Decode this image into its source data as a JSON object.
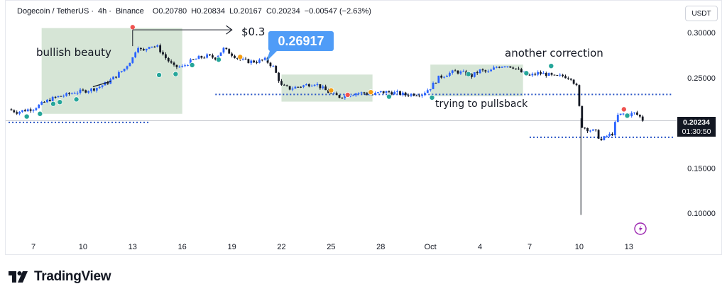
{
  "header": {
    "symbol": "Dogecoin / TetherUS",
    "interval": "4h",
    "exchange": "Binance",
    "open": "O0.20780",
    "high": "H0.20834",
    "low": "L0.20167",
    "close": "C0.20234",
    "change": "−0.00547 (−2.63%)"
  },
  "currency": "USDT",
  "last_price": "0.20234",
  "countdown": "01:30:50",
  "brand": "TradingView",
  "annotations": {
    "bullish": "bullish beauty",
    "target": "$0.3",
    "callout": "0.26917",
    "correction": "another correction",
    "pullback": "trying to pullsback"
  },
  "colors": {
    "up": "#2962ff",
    "down": "#131722",
    "zone": "#cfe0cf",
    "level": "#2a56c6",
    "callout": "#4f9cf7",
    "marker_green": "#26a69a",
    "marker_red": "#ef5350",
    "marker_orange": "#f39c12",
    "price_label_bg": "#131722"
  },
  "chart_data": {
    "type": "candlestick",
    "title": "",
    "ylim": [
      0.09,
      0.318
    ],
    "y_ticks": [
      0.1,
      0.15,
      0.2,
      0.25,
      0.3
    ],
    "y_tick_labels": [
      "0.10000",
      "0.15000",
      "0.20000",
      "0.25000",
      "0.30000"
    ],
    "x_ticks": [
      "7",
      "10",
      "13",
      "16",
      "19",
      "22",
      "25",
      "28",
      "Oct",
      "4",
      "7",
      "10",
      "13"
    ],
    "x_tick_days": [
      0,
      3,
      6,
      9,
      12,
      15,
      18,
      21,
      24,
      27,
      30,
      33,
      36
    ],
    "close_path": [
      [
        -1.5,
        0.215
      ],
      [
        -1.0,
        0.212
      ],
      [
        -0.5,
        0.214
      ],
      [
        0,
        0.216
      ],
      [
        0.5,
        0.221
      ],
      [
        1.0,
        0.226
      ],
      [
        1.5,
        0.229
      ],
      [
        2.0,
        0.231
      ],
      [
        2.5,
        0.234
      ],
      [
        3.0,
        0.235
      ],
      [
        3.5,
        0.237
      ],
      [
        4.0,
        0.24
      ],
      [
        4.5,
        0.245
      ],
      [
        5.0,
        0.252
      ],
      [
        5.5,
        0.26
      ],
      [
        6.0,
        0.272
      ],
      [
        6.3,
        0.286
      ],
      [
        6.6,
        0.278
      ],
      [
        7.0,
        0.286
      ],
      [
        7.5,
        0.284
      ],
      [
        8.0,
        0.272
      ],
      [
        8.5,
        0.262
      ],
      [
        9.0,
        0.262
      ],
      [
        9.5,
        0.268
      ],
      [
        10.0,
        0.272
      ],
      [
        10.5,
        0.274
      ],
      [
        11.0,
        0.272
      ],
      [
        11.5,
        0.282
      ],
      [
        12.0,
        0.276
      ],
      [
        12.5,
        0.27
      ],
      [
        13.0,
        0.268
      ],
      [
        13.5,
        0.268
      ],
      [
        14.0,
        0.27
      ],
      [
        14.5,
        0.262
      ],
      [
        15.0,
        0.241
      ],
      [
        15.5,
        0.238
      ],
      [
        16.0,
        0.24
      ],
      [
        16.5,
        0.242
      ],
      [
        17.0,
        0.244
      ],
      [
        17.5,
        0.238
      ],
      [
        18.0,
        0.232
      ],
      [
        18.5,
        0.229
      ],
      [
        19.0,
        0.231
      ],
      [
        19.5,
        0.233
      ],
      [
        20.0,
        0.233
      ],
      [
        20.5,
        0.231
      ],
      [
        21.0,
        0.234
      ],
      [
        21.5,
        0.234
      ],
      [
        22.0,
        0.233
      ],
      [
        22.5,
        0.231
      ],
      [
        23.0,
        0.232
      ],
      [
        23.5,
        0.232
      ],
      [
        24.0,
        0.239
      ],
      [
        24.5,
        0.25
      ],
      [
        25.0,
        0.254
      ],
      [
        25.5,
        0.257
      ],
      [
        26.0,
        0.255
      ],
      [
        26.5,
        0.252
      ],
      [
        27.0,
        0.258
      ],
      [
        27.5,
        0.256
      ],
      [
        28.0,
        0.262
      ],
      [
        28.5,
        0.264
      ],
      [
        29.0,
        0.262
      ],
      [
        29.5,
        0.256
      ],
      [
        30.0,
        0.252
      ],
      [
        30.5,
        0.255
      ],
      [
        31.0,
        0.254
      ],
      [
        31.5,
        0.251
      ],
      [
        32.0,
        0.252
      ],
      [
        32.5,
        0.25
      ],
      [
        32.9,
        0.238
      ],
      [
        33.1,
        0.197
      ],
      [
        33.5,
        0.193
      ],
      [
        34.0,
        0.19
      ],
      [
        34.3,
        0.18
      ],
      [
        34.6,
        0.185
      ],
      [
        35.0,
        0.188
      ],
      [
        35.3,
        0.208
      ],
      [
        35.7,
        0.21
      ],
      [
        36.0,
        0.209
      ],
      [
        36.3,
        0.211
      ],
      [
        36.6,
        0.208
      ],
      [
        36.9,
        0.202
      ]
    ],
    "spike_low": {
      "day": 33.1,
      "low": 0.098
    },
    "spike_high": {
      "day": 6.0,
      "high": 0.306
    },
    "levels": [
      {
        "price": 0.2005,
        "from_day": -1.5,
        "to_day": 7.0
      },
      {
        "price": 0.2315,
        "from_day": 11.0,
        "to_day": 41.0
      },
      {
        "price": 0.184,
        "from_day": 30.0,
        "to_day": 41.0
      }
    ],
    "zones": [
      {
        "from_day": 0.5,
        "to_day": 9.0,
        "low": 0.21,
        "high": 0.305
      },
      {
        "from_day": 15.0,
        "to_day": 20.5,
        "low": 0.2235,
        "high": 0.2535
      },
      {
        "from_day": 24.0,
        "to_day": 29.6,
        "low": 0.2295,
        "high": 0.2645
      }
    ],
    "target_arrow": {
      "from_day": 6.0,
      "to_day": 12.0,
      "price": 0.303
    },
    "markers_green": [
      [
        -0.4,
        0.207
      ],
      [
        0.4,
        0.21
      ],
      [
        1.2,
        0.221
      ],
      [
        1.6,
        0.223
      ],
      [
        2.6,
        0.226
      ],
      [
        7.6,
        0.253
      ],
      [
        8.6,
        0.254
      ],
      [
        9.6,
        0.264
      ],
      [
        11.2,
        0.27
      ],
      [
        21.5,
        0.229
      ],
      [
        24.1,
        0.228
      ],
      [
        26.3,
        0.254
      ],
      [
        29.8,
        0.255
      ],
      [
        31.3,
        0.263
      ],
      [
        35.9,
        0.208
      ]
    ],
    "markers_orange": [
      [
        12.5,
        0.273
      ],
      [
        18.0,
        0.236
      ],
      [
        20.4,
        0.234
      ]
    ],
    "markers_red": [
      [
        6.0,
        0.306
      ],
      [
        19.0,
        0.231
      ],
      [
        35.7,
        0.215
      ]
    ]
  }
}
